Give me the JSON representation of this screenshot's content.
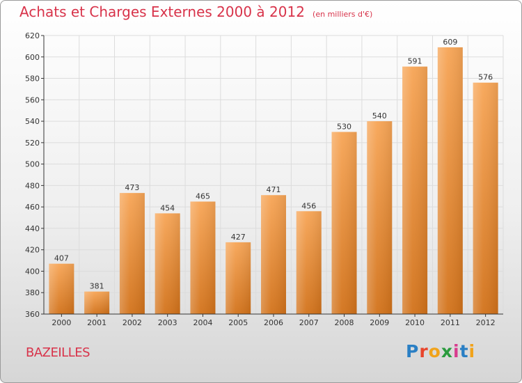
{
  "chart_data": {
    "type": "bar",
    "title": "Achats et Charges Externes 2000 à 2012",
    "subtitle": "(en milliers d'€)",
    "categories": [
      "2000",
      "2001",
      "2002",
      "2003",
      "2004",
      "2005",
      "2006",
      "2007",
      "2008",
      "2009",
      "2010",
      "2011",
      "2012"
    ],
    "values": [
      407,
      381,
      473,
      454,
      465,
      427,
      471,
      456,
      530,
      540,
      591,
      609,
      576
    ],
    "ylim": [
      360,
      620
    ],
    "yticks": [
      360,
      380,
      400,
      420,
      440,
      460,
      480,
      500,
      520,
      540,
      560,
      580,
      600,
      620
    ],
    "grid": true,
    "bar_color_top": "#f7a556",
    "bar_color_bottom": "#d2721a"
  },
  "footer": {
    "commune": "BAZEILLES",
    "logo": "Proxiti",
    "logo_colors": [
      "#2a7fc4",
      "#e8452c",
      "#f1a31a",
      "#2a9b3e",
      "#d83c8e",
      "#2a7fc4",
      "#f1a31a"
    ]
  },
  "colors": {
    "title": "#d8334a",
    "axis": "#333333",
    "grid": "#dcdcdc"
  }
}
